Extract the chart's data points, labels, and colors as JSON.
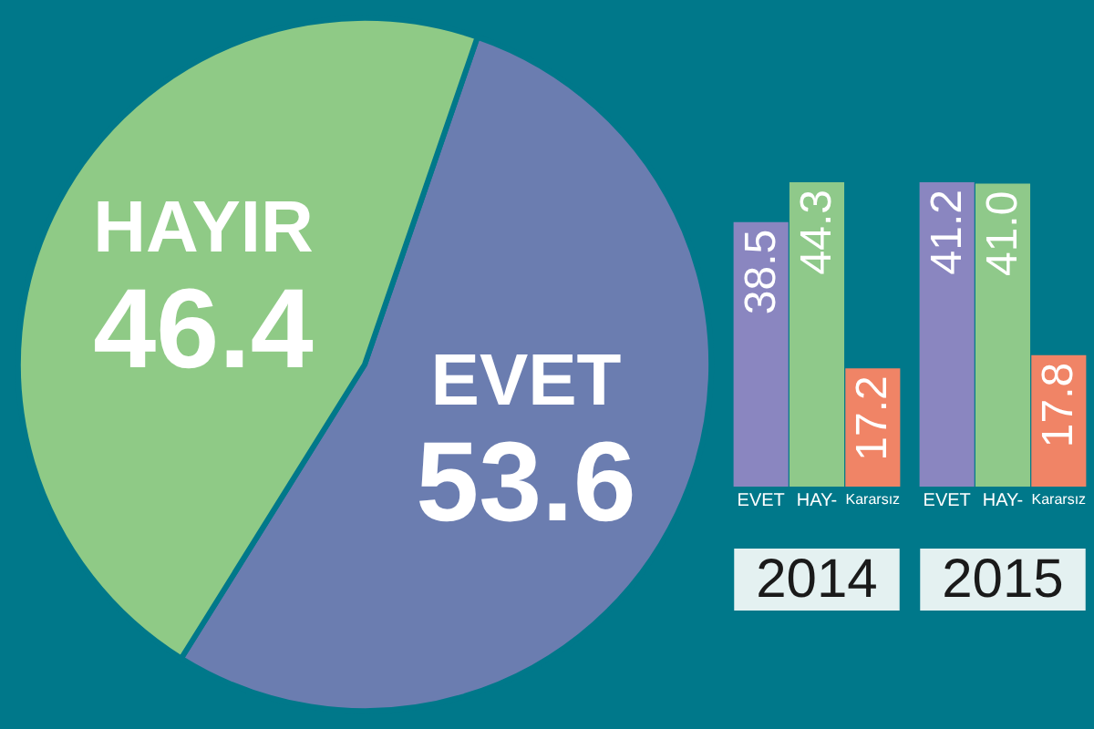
{
  "chart_data": [
    {
      "type": "pie",
      "categories": [
        "EVET",
        "HAYIR"
      ],
      "values": [
        53.6,
        46.4
      ],
      "colors": [
        "#6b7db0",
        "#8fca86"
      ],
      "data_labels": true
    },
    {
      "type": "bar",
      "xlabel": "2014",
      "categories": [
        "EVET",
        "HAY-",
        "Kararsız"
      ],
      "values": [
        38.5,
        44.3,
        17.2
      ],
      "value_labels": [
        "38.5",
        "44.3",
        "17.2"
      ],
      "colors": [
        "#8a86c0",
        "#8fc98a",
        "#f08466"
      ]
    },
    {
      "type": "bar",
      "xlabel": "2015",
      "categories": [
        "EVET",
        "HAY-",
        "Kararsız"
      ],
      "values": [
        41.2,
        41.0,
        17.8
      ],
      "value_labels": [
        "41.2",
        "41.0",
        "17.8"
      ],
      "colors": [
        "#8a86c0",
        "#8fc98a",
        "#f08466"
      ]
    }
  ]
}
